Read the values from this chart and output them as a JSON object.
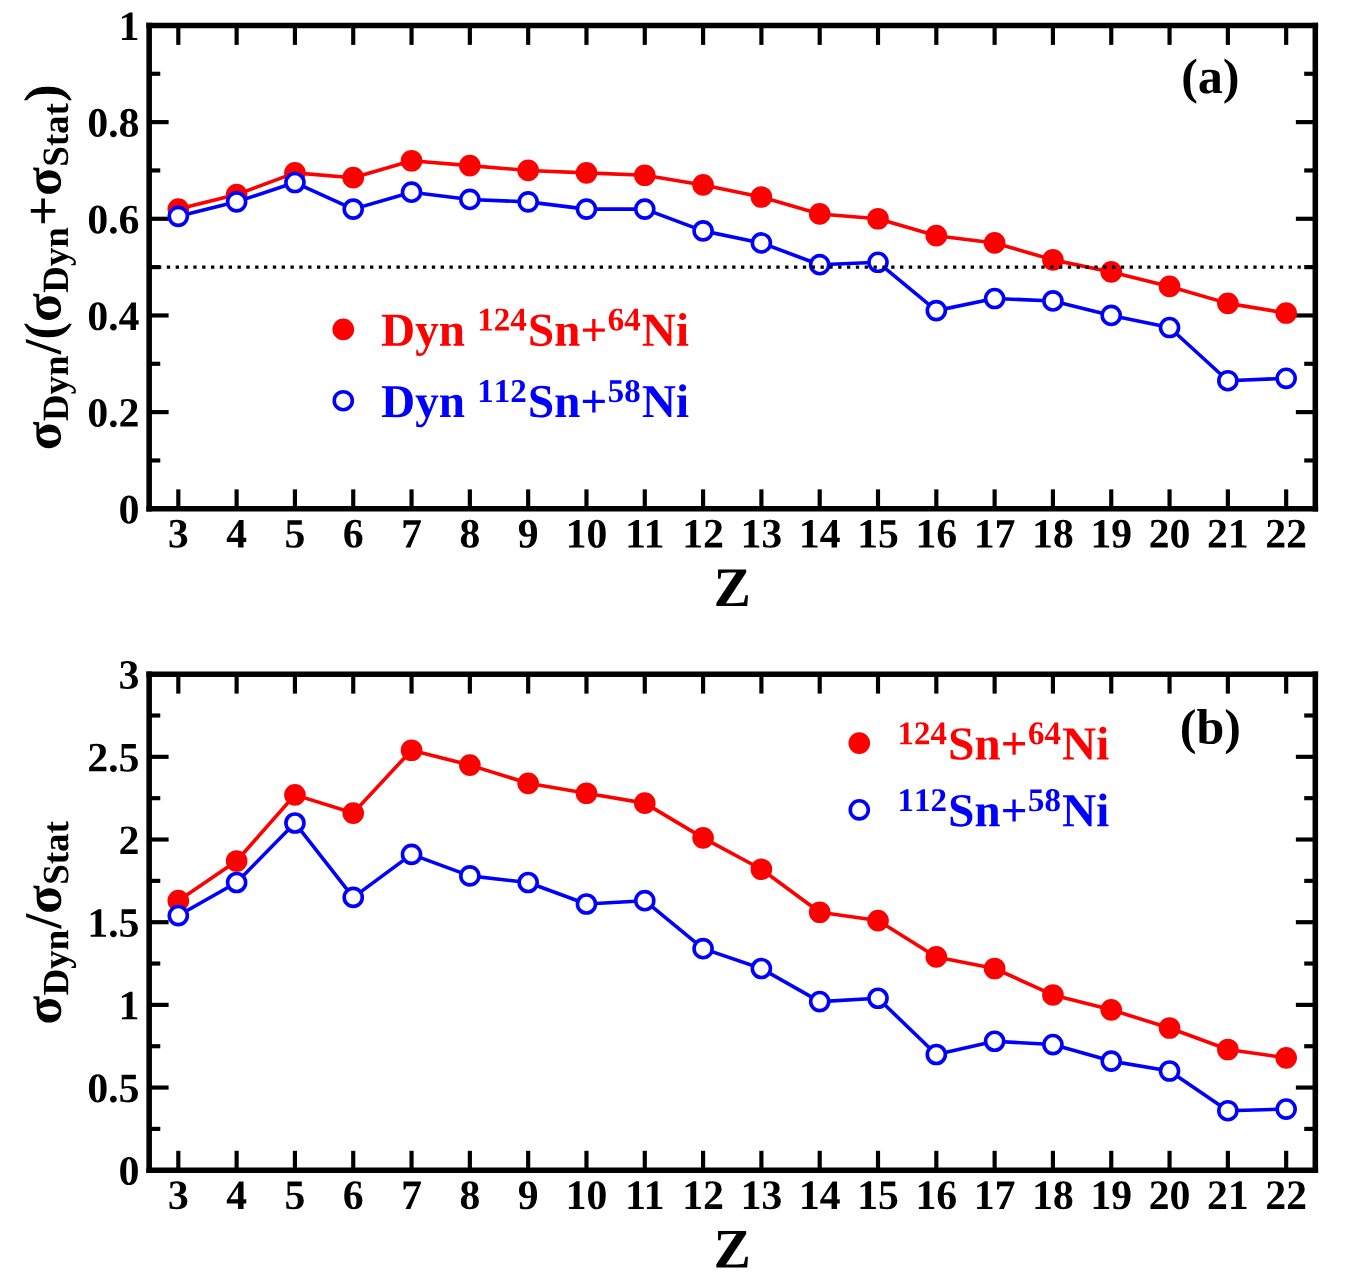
{
  "chart_data": [
    {
      "type": "line",
      "xlabel": "Z",
      "ylabel": "σ$_{Dyn}$/(σ$_{Dyn}$+σ$_{Stat}$)",
      "annotations": [
        "(a)"
      ],
      "x": [
        3,
        4,
        5,
        6,
        7,
        8,
        9,
        10,
        11,
        12,
        13,
        14,
        15,
        16,
        17,
        18,
        19,
        20,
        21,
        22
      ],
      "xlim": [
        2.5,
        22.5
      ],
      "xticks": [
        3,
        4,
        5,
        6,
        7,
        8,
        9,
        10,
        11,
        12,
        13,
        14,
        15,
        16,
        17,
        18,
        19,
        20,
        21,
        22
      ],
      "ylim": [
        0,
        1
      ],
      "yticks": [
        0,
        0.2,
        0.4,
        0.6,
        0.8,
        1
      ],
      "grid": false,
      "legend": "bottom left",
      "marker": "circle",
      "line_style": "solid",
      "ref_lines": [
        {
          "axis": "y",
          "value": 0.5,
          "color": "#000000",
          "line_style": "dotted"
        }
      ],
      "series": [
        {
          "name": "Dyn $^{124}$Sn+$^{64}$Ni",
          "color": "#ff0000",
          "values": [
            0.62,
            0.65,
            0.695,
            0.685,
            0.72,
            0.71,
            0.7,
            0.695,
            0.69,
            0.67,
            0.645,
            0.61,
            0.6,
            0.565,
            0.55,
            0.515,
            0.49,
            0.46,
            0.425,
            0.405
          ]
        },
        {
          "name": "Dyn $^{112}$Sn+$^{58}$Ni",
          "color": "#0000ff",
          "values": [
            0.605,
            0.635,
            0.675,
            0.62,
            0.655,
            0.64,
            0.635,
            0.62,
            0.62,
            0.575,
            0.55,
            0.505,
            0.51,
            0.41,
            0.435,
            0.43,
            0.4,
            0.375,
            0.265,
            0.27
          ]
        }
      ]
    },
    {
      "type": "line",
      "xlabel": "Z",
      "ylabel": "σ$_{Dyn}$/σ$_{Stat}$",
      "annotations": [
        "(b)"
      ],
      "x": [
        3,
        4,
        5,
        6,
        7,
        8,
        9,
        10,
        11,
        12,
        13,
        14,
        15,
        16,
        17,
        18,
        19,
        20,
        21,
        22
      ],
      "xlim": [
        2.5,
        22.5
      ],
      "xticks": [
        3,
        4,
        5,
        6,
        7,
        8,
        9,
        10,
        11,
        12,
        13,
        14,
        15,
        16,
        17,
        18,
        19,
        20,
        21,
        22
      ],
      "ylim": [
        0,
        3
      ],
      "yticks": [
        0,
        0.5,
        1,
        1.5,
        2,
        2.5,
        3
      ],
      "grid": false,
      "legend": "top right",
      "marker": "circle",
      "line_style": "solid",
      "series": [
        {
          "name": "$^{124}$Sn+$^{64}$Ni",
          "color": "#ff0000",
          "values": [
            1.63,
            1.87,
            2.27,
            2.16,
            2.54,
            2.45,
            2.34,
            2.28,
            2.22,
            2.01,
            1.82,
            1.56,
            1.51,
            1.29,
            1.22,
            1.06,
            0.97,
            0.86,
            0.73,
            0.68
          ]
        },
        {
          "name": "$^{112}$Sn+$^{58}$Ni",
          "color": "#0000ff",
          "values": [
            1.54,
            1.74,
            2.1,
            1.65,
            1.91,
            1.78,
            1.74,
            1.61,
            1.63,
            1.34,
            1.22,
            1.02,
            1.04,
            0.7,
            0.78,
            0.76,
            0.66,
            0.6,
            0.36,
            0.37
          ]
        }
      ]
    }
  ]
}
